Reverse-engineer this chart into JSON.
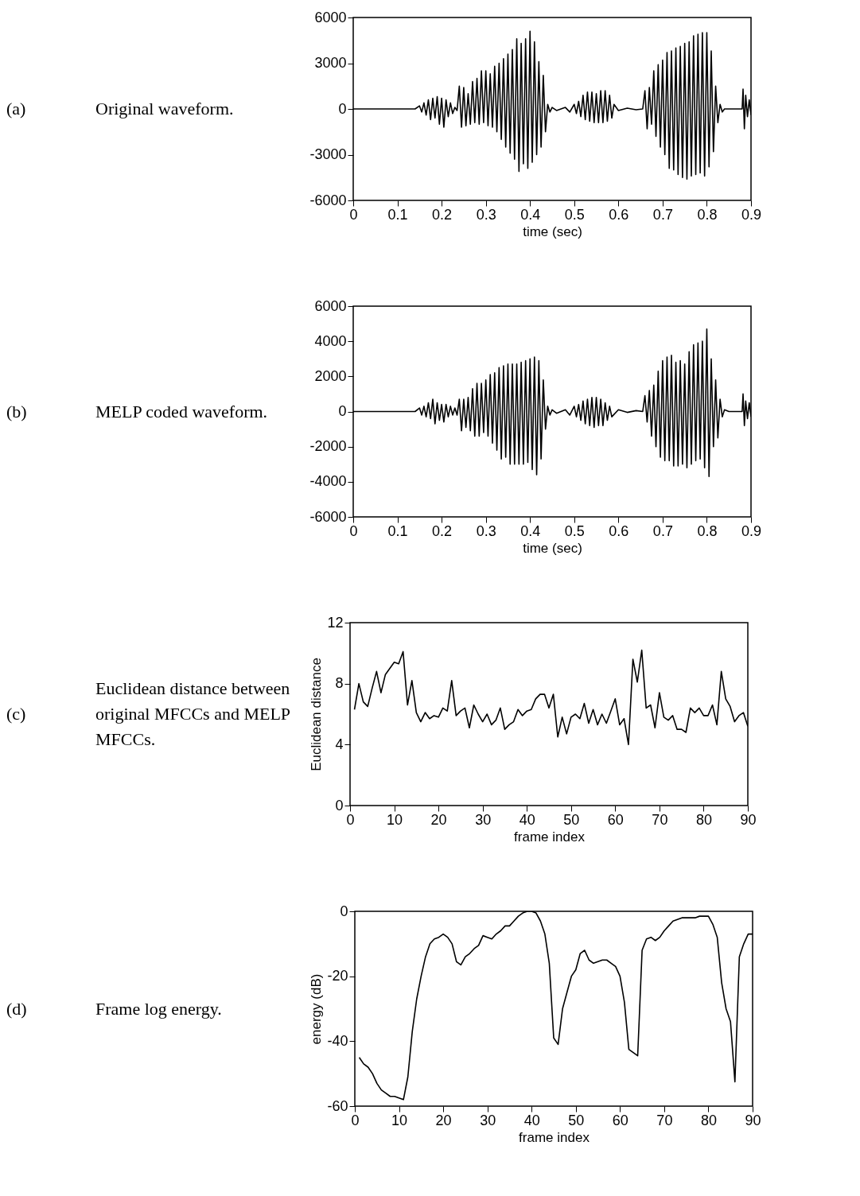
{
  "chart_data": [
    {
      "type": "line",
      "xlabel": "time (sec)",
      "annotations": [
        "(a)",
        "Original waveform."
      ],
      "xlim": [
        0,
        0.9
      ],
      "xticks": [
        0,
        0.1,
        0.2,
        0.3,
        0.4,
        0.5,
        0.6,
        0.7,
        0.8,
        0.9
      ],
      "ylim": [
        -6000,
        6000
      ],
      "yticks": [
        -6000,
        -3000,
        0,
        3000,
        6000
      ],
      "grid": false,
      "series": [
        {
          "color": "#000000",
          "x": [
            0,
            0.14,
            0.15,
            0.155,
            0.16,
            0.165,
            0.17,
            0.175,
            0.18,
            0.185,
            0.19,
            0.195,
            0.2,
            0.205,
            0.21,
            0.215,
            0.22,
            0.225,
            0.23,
            0.235,
            0.24,
            0.245,
            0.25,
            0.255,
            0.26,
            0.265,
            0.27,
            0.275,
            0.28,
            0.285,
            0.29,
            0.295,
            0.3,
            0.305,
            0.31,
            0.315,
            0.32,
            0.325,
            0.33,
            0.335,
            0.34,
            0.345,
            0.35,
            0.355,
            0.36,
            0.365,
            0.37,
            0.375,
            0.38,
            0.385,
            0.39,
            0.395,
            0.4,
            0.405,
            0.41,
            0.415,
            0.42,
            0.425,
            0.43,
            0.435,
            0.44,
            0.445,
            0.45,
            0.46,
            0.48,
            0.49,
            0.5,
            0.505,
            0.51,
            0.515,
            0.52,
            0.525,
            0.53,
            0.535,
            0.54,
            0.545,
            0.55,
            0.555,
            0.56,
            0.565,
            0.57,
            0.575,
            0.58,
            0.585,
            0.59,
            0.6,
            0.62,
            0.64,
            0.655,
            0.66,
            0.665,
            0.67,
            0.675,
            0.68,
            0.685,
            0.69,
            0.695,
            0.7,
            0.705,
            0.71,
            0.715,
            0.72,
            0.725,
            0.73,
            0.735,
            0.74,
            0.745,
            0.75,
            0.755,
            0.76,
            0.765,
            0.77,
            0.775,
            0.78,
            0.785,
            0.79,
            0.795,
            0.8,
            0.805,
            0.81,
            0.815,
            0.82,
            0.825,
            0.83,
            0.835,
            0.84,
            0.88,
            0.882,
            0.885,
            0.888,
            0.892,
            0.896,
            0.9
          ],
          "values": [
            0,
            0,
            200,
            -200,
            400,
            -400,
            600,
            -700,
            700,
            -600,
            800,
            -1000,
            700,
            -1200,
            600,
            -500,
            400,
            -300,
            100,
            -100,
            1500,
            -1200,
            1400,
            -1100,
            1000,
            -1000,
            1800,
            -900,
            2000,
            -1000,
            2500,
            -900,
            2500,
            -1100,
            2300,
            -1200,
            2800,
            -1500,
            3000,
            -2000,
            3300,
            -2500,
            3600,
            -2900,
            3900,
            -3300,
            4600,
            -4100,
            4300,
            -3600,
            4600,
            -3900,
            5100,
            -3500,
            4400,
            -3000,
            3100,
            -2500,
            2200,
            -1500,
            300,
            -200,
            100,
            -100,
            100,
            -200,
            300,
            -300,
            500,
            -500,
            900,
            -700,
            1100,
            -800,
            1100,
            -900,
            1000,
            -900,
            1200,
            -900,
            1200,
            -800,
            900,
            -600,
            300,
            -100,
            50,
            -50,
            0,
            1200,
            -1300,
            1400,
            -1000,
            2500,
            -1800,
            2900,
            -2500,
            3200,
            -3000,
            3700,
            -3900,
            3800,
            -4000,
            4000,
            -4300,
            4100,
            -4500,
            4300,
            -4600,
            4400,
            -4400,
            4800,
            -4300,
            4900,
            -4200,
            5000,
            -4400,
            5000,
            -3800,
            3800,
            -2800,
            1500,
            -900,
            300,
            -200,
            0,
            0,
            1300,
            -1300,
            900,
            -500,
            600,
            -400
          ]
        }
      ]
    },
    {
      "type": "line",
      "xlabel": "time (sec)",
      "annotations": [
        "(b)",
        "MELP coded waveform."
      ],
      "xlim": [
        0,
        0.9
      ],
      "xticks": [
        0,
        0.1,
        0.2,
        0.3,
        0.4,
        0.5,
        0.6,
        0.7,
        0.8,
        0.9
      ],
      "ylim": [
        -6000,
        6000
      ],
      "yticks": [
        -6000,
        -4000,
        -2000,
        0,
        2000,
        4000,
        6000
      ],
      "grid": false,
      "series": [
        {
          "color": "#000000",
          "x": [
            0,
            0.14,
            0.15,
            0.155,
            0.16,
            0.165,
            0.17,
            0.175,
            0.18,
            0.185,
            0.19,
            0.195,
            0.2,
            0.205,
            0.21,
            0.215,
            0.22,
            0.225,
            0.23,
            0.235,
            0.24,
            0.245,
            0.25,
            0.255,
            0.26,
            0.265,
            0.27,
            0.275,
            0.28,
            0.285,
            0.29,
            0.295,
            0.3,
            0.305,
            0.31,
            0.315,
            0.32,
            0.325,
            0.33,
            0.335,
            0.34,
            0.345,
            0.35,
            0.355,
            0.36,
            0.365,
            0.37,
            0.375,
            0.38,
            0.385,
            0.39,
            0.395,
            0.4,
            0.405,
            0.41,
            0.415,
            0.42,
            0.425,
            0.43,
            0.435,
            0.44,
            0.445,
            0.45,
            0.46,
            0.48,
            0.49,
            0.5,
            0.505,
            0.51,
            0.515,
            0.52,
            0.525,
            0.53,
            0.535,
            0.54,
            0.545,
            0.55,
            0.555,
            0.56,
            0.565,
            0.57,
            0.575,
            0.58,
            0.585,
            0.6,
            0.62,
            0.64,
            0.655,
            0.66,
            0.665,
            0.67,
            0.675,
            0.68,
            0.685,
            0.69,
            0.695,
            0.7,
            0.705,
            0.71,
            0.715,
            0.72,
            0.725,
            0.73,
            0.735,
            0.74,
            0.745,
            0.75,
            0.755,
            0.76,
            0.765,
            0.77,
            0.775,
            0.78,
            0.785,
            0.79,
            0.795,
            0.8,
            0.805,
            0.81,
            0.815,
            0.82,
            0.825,
            0.83,
            0.835,
            0.84,
            0.85,
            0.88,
            0.882,
            0.885,
            0.888,
            0.892,
            0.896,
            0.9
          ],
          "values": [
            0,
            0,
            200,
            -200,
            300,
            -300,
            500,
            -400,
            700,
            -700,
            500,
            -500,
            400,
            -600,
            400,
            -300,
            300,
            -200,
            200,
            -200,
            700,
            -1100,
            700,
            -900,
            800,
            -1100,
            1300,
            -1400,
            1600,
            -1400,
            1600,
            -1200,
            1800,
            -1400,
            2100,
            -1800,
            2200,
            -2200,
            2500,
            -2700,
            2600,
            -2600,
            2700,
            -3000,
            2700,
            -3000,
            2700,
            -3000,
            2800,
            -3000,
            2900,
            -2900,
            3000,
            -3300,
            3100,
            -3600,
            2900,
            -2700,
            1800,
            -1000,
            300,
            -200,
            100,
            -100,
            100,
            -200,
            300,
            -300,
            400,
            -500,
            600,
            -700,
            700,
            -800,
            800,
            -900,
            800,
            -800,
            700,
            -800,
            500,
            -500,
            300,
            -300,
            100,
            -50,
            50,
            0,
            900,
            -600,
            1200,
            -1400,
            1500,
            -2000,
            2300,
            -2600,
            2900,
            -2800,
            3100,
            -2800,
            3200,
            -3100,
            2800,
            -3100,
            2900,
            -3000,
            2700,
            -3200,
            3400,
            -3000,
            3800,
            -2800,
            3900,
            -2700,
            4000,
            -3200,
            4700,
            -3700,
            3000,
            -2000,
            1800,
            -1500,
            700,
            -300,
            100,
            0,
            0,
            1000,
            -800,
            600,
            -400,
            500,
            -300
          ]
        }
      ]
    },
    {
      "type": "line",
      "xlabel": "frame index",
      "ylabel": "Euclidean distance",
      "annotations": [
        "(c)",
        "Euclidean distance between original MFCCs and MELP MFCCs."
      ],
      "xlim": [
        0,
        90
      ],
      "xticks": [
        0,
        10,
        20,
        30,
        40,
        50,
        60,
        70,
        80,
        90
      ],
      "ylim": [
        0,
        12
      ],
      "yticks": [
        0,
        4,
        8,
        12
      ],
      "grid": false,
      "series": [
        {
          "color": "#000000",
          "x": [
            1,
            2,
            3,
            4,
            5,
            6,
            7,
            8,
            9,
            10,
            11,
            12,
            13,
            14,
            15,
            16,
            17,
            18,
            19,
            20,
            21,
            22,
            23,
            24,
            25,
            26,
            27,
            28,
            29,
            30,
            31,
            32,
            33,
            34,
            35,
            36,
            37,
            38,
            39,
            40,
            41,
            42,
            43,
            44,
            45,
            46,
            47,
            48,
            49,
            50,
            51,
            52,
            53,
            54,
            55,
            56,
            57,
            58,
            59,
            60,
            61,
            62,
            63,
            64,
            65,
            66,
            67,
            68,
            69,
            70,
            71,
            72,
            73,
            74,
            75,
            76,
            77,
            78,
            79,
            80,
            81,
            82,
            83,
            84,
            85,
            86,
            87,
            88,
            89,
            90
          ],
          "values": [
            6.3,
            8.0,
            6.8,
            6.5,
            7.7,
            8.8,
            7.4,
            8.6,
            9.0,
            9.4,
            9.3,
            10.1,
            6.6,
            8.2,
            6.1,
            5.5,
            6.1,
            5.7,
            5.9,
            5.8,
            6.4,
            6.2,
            8.2,
            5.9,
            6.2,
            6.4,
            5.1,
            6.6,
            6.0,
            5.5,
            6.0,
            5.3,
            5.6,
            6.4,
            5.0,
            5.3,
            5.5,
            6.3,
            5.9,
            6.2,
            6.3,
            7.0,
            7.3,
            7.3,
            6.4,
            7.3,
            4.5,
            5.8,
            4.7,
            5.8,
            6.0,
            5.7,
            6.7,
            5.4,
            6.3,
            5.3,
            6.0,
            5.4,
            6.2,
            7.0,
            5.3,
            5.7,
            4.0,
            9.6,
            8.1,
            10.2,
            6.4,
            6.6,
            5.1,
            7.4,
            5.8,
            5.6,
            5.9,
            5.0,
            5.0,
            4.8,
            6.4,
            6.1,
            6.4,
            5.9,
            5.9,
            6.6,
            5.3,
            8.8,
            7.0,
            6.5,
            5.5,
            5.9,
            6.1,
            5.2
          ]
        }
      ]
    },
    {
      "type": "line",
      "xlabel": "frame index",
      "ylabel": "energy (dB)",
      "annotations": [
        "(d)",
        "Frame log energy."
      ],
      "xlim": [
        0,
        90
      ],
      "xticks": [
        0,
        10,
        20,
        30,
        40,
        50,
        60,
        70,
        80,
        90
      ],
      "ylim": [
        -60,
        0
      ],
      "yticks": [
        -60,
        -40,
        -20,
        0
      ],
      "grid": false,
      "series": [
        {
          "color": "#000000",
          "x": [
            1,
            2,
            3,
            4,
            5,
            6,
            7,
            8,
            9,
            10,
            11,
            12,
            13,
            14,
            15,
            16,
            17,
            18,
            19,
            20,
            21,
            22,
            23,
            24,
            25,
            26,
            27,
            28,
            29,
            30,
            31,
            32,
            33,
            34,
            35,
            36,
            37,
            38,
            39,
            40,
            41,
            42,
            43,
            44,
            45,
            46,
            47,
            48,
            49,
            50,
            51,
            52,
            53,
            54,
            55,
            56,
            57,
            58,
            59,
            60,
            61,
            62,
            63,
            64,
            65,
            66,
            67,
            68,
            69,
            70,
            71,
            72,
            73,
            74,
            75,
            76,
            77,
            78,
            79,
            80,
            81,
            82,
            83,
            84,
            85,
            86,
            87,
            88,
            89,
            90
          ],
          "values": [
            -45,
            -47,
            -48,
            -50,
            -53,
            -55,
            -56,
            -57,
            -57,
            -57.5,
            -58,
            -51,
            -37,
            -27,
            -20,
            -14,
            -10,
            -8.5,
            -8,
            -7,
            -8,
            -10,
            -15.5,
            -16.5,
            -14,
            -13,
            -11.5,
            -10.5,
            -7.5,
            -8,
            -8.5,
            -7,
            -6,
            -4.5,
            -4.5,
            -3,
            -1.5,
            -0.5,
            0,
            0,
            -0.5,
            -3,
            -7,
            -16,
            -39,
            -41,
            -30,
            -25,
            -20,
            -18,
            -13,
            -12,
            -15,
            -16,
            -15.5,
            -15,
            -15,
            -16,
            -17,
            -20,
            -28,
            -42.5,
            -43.5,
            -44.5,
            -12,
            -8.5,
            -8,
            -9,
            -8,
            -6,
            -4.5,
            -3,
            -2.5,
            -2,
            -2,
            -2,
            -2,
            -1.5,
            -1.5,
            -1.5,
            -4,
            -8,
            -22,
            -30,
            -34,
            -52.5,
            -14,
            -10,
            -7,
            -7
          ]
        }
      ]
    }
  ]
}
